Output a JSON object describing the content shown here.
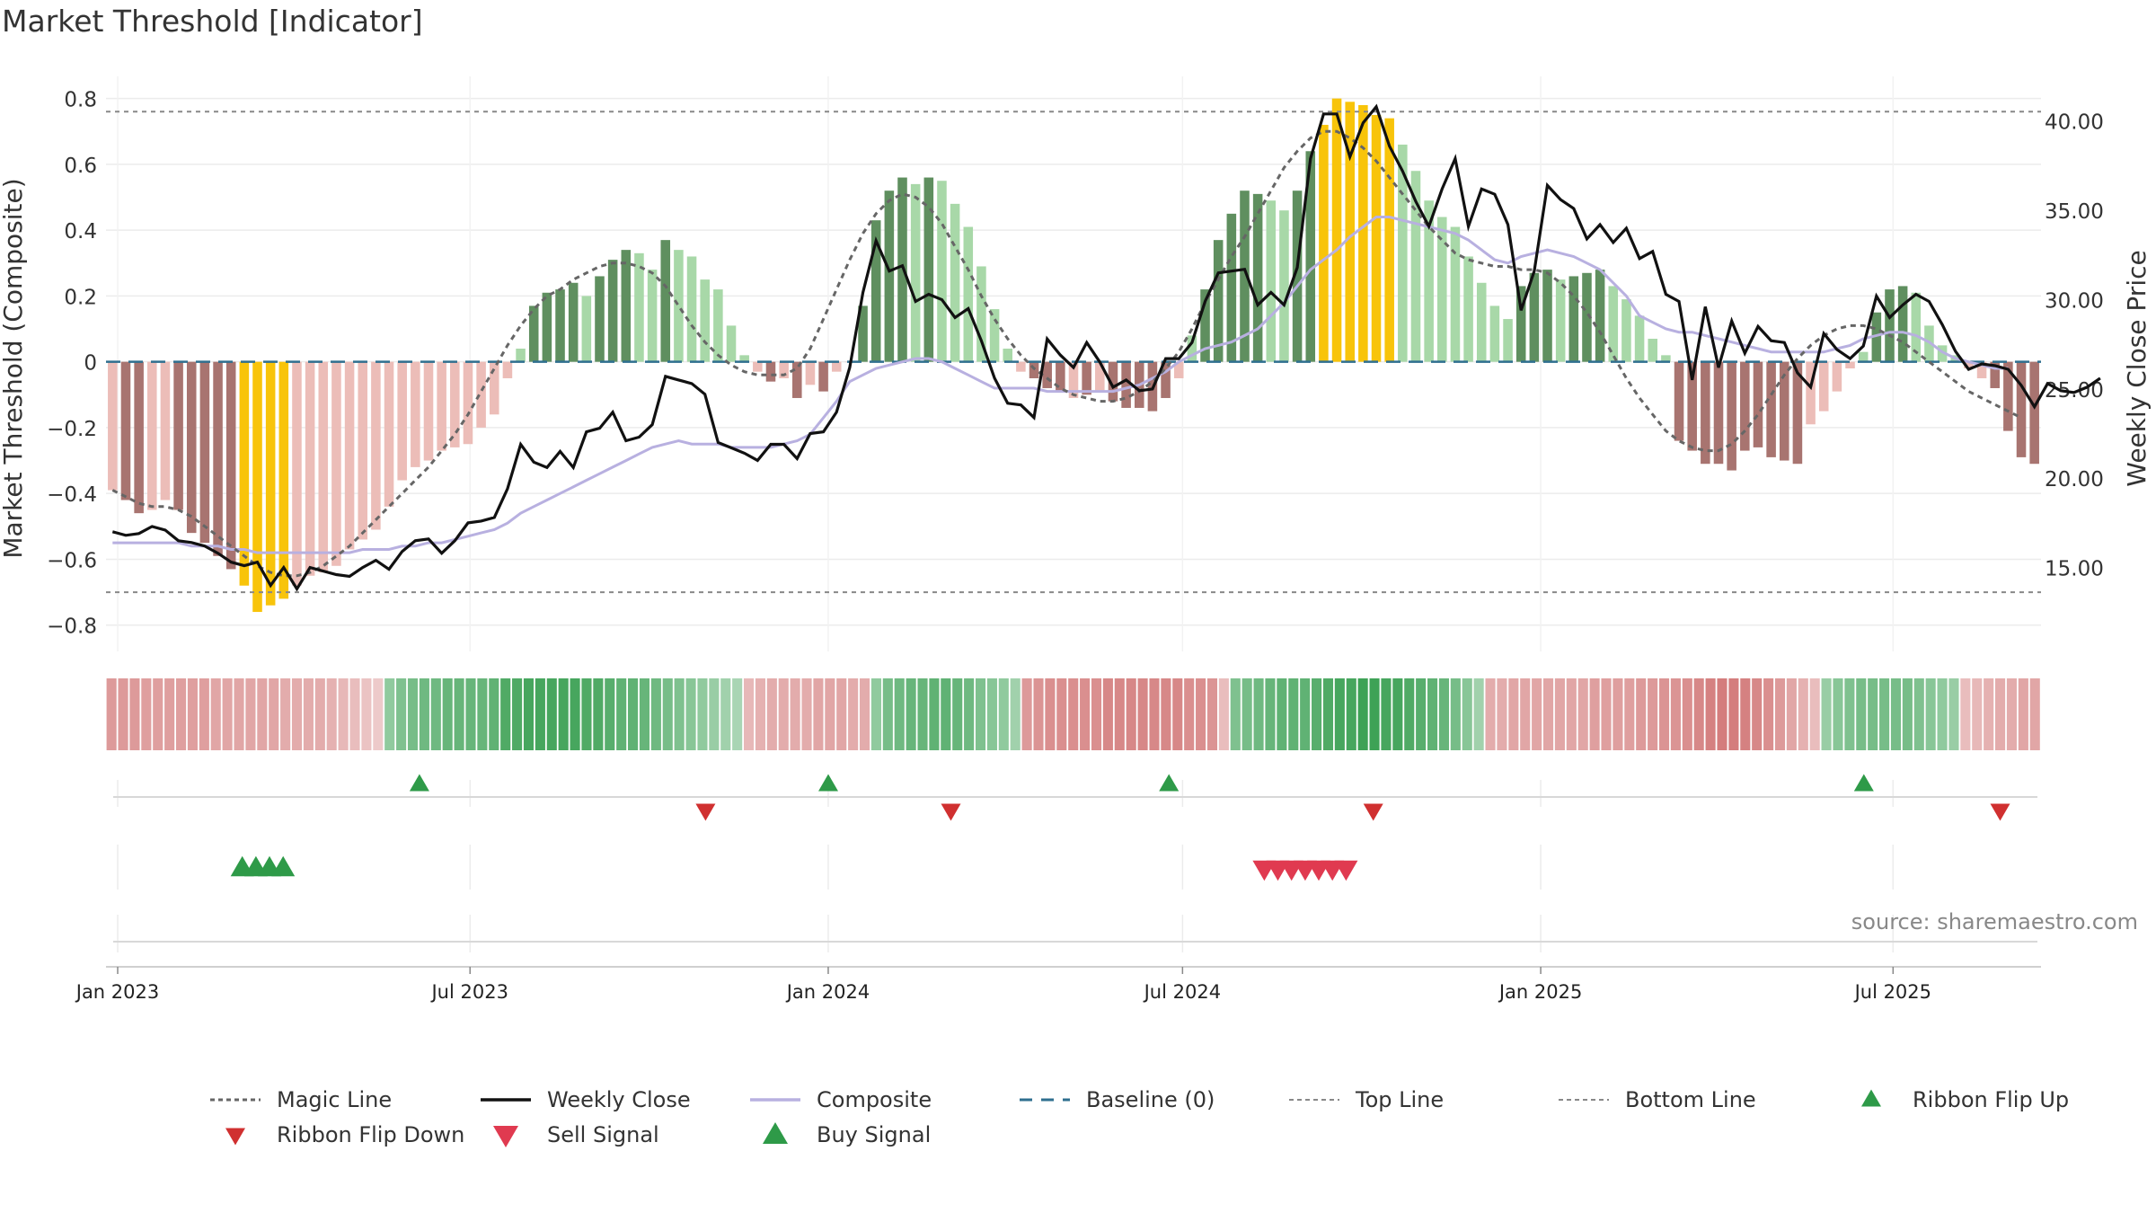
{
  "title": "Market Threshold [Indicator]",
  "source": "source: sharemaestro.com",
  "colors": {
    "dark_green": "#5f8f5f",
    "light_green": "#a8d8a8",
    "dark_red": "#a87470",
    "light_red": "#ecbdb8",
    "yellow": "#f8c40a",
    "close": "#111111",
    "composite": "#b8b0e0",
    "magic": "#666666",
    "baseline": "#2f6f8f",
    "ribbon_up": "#2e9a48",
    "ribbon_down": "#d03030",
    "sell": "#e03a50",
    "buy": "#2e9a48"
  },
  "chart_data": {
    "type": "bar",
    "title": "Market Threshold [Indicator]",
    "ylabel": "Market Threshold (Composite)",
    "y2label": "Weekly Close Price",
    "ylim": [
      -0.88,
      0.84
    ],
    "y2lim": [
      10.3,
      42.0
    ],
    "yticks": [
      -0.8,
      -0.6,
      -0.4,
      -0.2,
      0,
      0.2,
      0.4,
      0.6,
      0.8
    ],
    "ytick_labels": [
      "−0.8",
      "−0.6",
      "−0.4",
      "−0.2",
      "0",
      "0.2",
      "0.4",
      "0.6",
      "0.8"
    ],
    "y2ticks": [
      15,
      20,
      25,
      30,
      35,
      40
    ],
    "y2tick_labels": [
      "15.00",
      "20.00",
      "25.00",
      "30.00",
      "35.00",
      "40.00"
    ],
    "x_start": "2022-12-26",
    "x_end": "2025-09-15",
    "date_ticks": [
      {
        "date": "2023-01-01",
        "label": "Jan 2023"
      },
      {
        "date": "2023-07-01",
        "label": "Jul 2023"
      },
      {
        "date": "2024-01-01",
        "label": "Jan 2024"
      },
      {
        "date": "2024-07-01",
        "label": "Jul 2024"
      },
      {
        "date": "2025-01-01",
        "label": "Jan 2025"
      },
      {
        "date": "2025-07-01",
        "label": "Jul 2025"
      }
    ],
    "top_line": 0.76,
    "bottom_line": -0.7,
    "legend_position": "bottom",
    "grid": true,
    "bars": [
      -0.39,
      -0.42,
      -0.46,
      -0.45,
      -0.42,
      -0.45,
      -0.52,
      -0.55,
      -0.59,
      -0.63,
      -0.68,
      -0.76,
      -0.74,
      -0.72,
      -0.68,
      -0.65,
      -0.64,
      -0.62,
      -0.57,
      -0.54,
      -0.51,
      -0.44,
      -0.36,
      -0.32,
      -0.3,
      -0.27,
      -0.26,
      -0.25,
      -0.2,
      -0.16,
      -0.05,
      0.04,
      0.17,
      0.21,
      0.22,
      0.24,
      0.2,
      0.26,
      0.31,
      0.34,
      0.33,
      0.28,
      0.37,
      0.34,
      0.32,
      0.25,
      0.22,
      0.11,
      0.02,
      -0.03,
      -0.06,
      -0.05,
      -0.11,
      -0.07,
      -0.09,
      -0.03,
      0.0,
      0.17,
      0.43,
      0.52,
      0.56,
      0.54,
      0.56,
      0.55,
      0.48,
      0.41,
      0.29,
      0.16,
      0.04,
      -0.03,
      -0.05,
      -0.08,
      -0.09,
      -0.11,
      -0.1,
      -0.09,
      -0.12,
      -0.14,
      -0.14,
      -0.15,
      -0.11,
      -0.05,
      0.08,
      0.22,
      0.37,
      0.45,
      0.52,
      0.51,
      0.49,
      0.46,
      0.52,
      0.64,
      0.72,
      0.8,
      0.79,
      0.78,
      0.75,
      0.74,
      0.66,
      0.58,
      0.49,
      0.44,
      0.41,
      0.32,
      0.24,
      0.17,
      0.13,
      0.23,
      0.27,
      0.28,
      0.25,
      0.26,
      0.27,
      0.28,
      0.23,
      0.19,
      0.14,
      0.07,
      0.02,
      -0.24,
      -0.27,
      -0.31,
      -0.31,
      -0.33,
      -0.27,
      -0.26,
      -0.29,
      -0.3,
      -0.31,
      -0.19,
      -0.15,
      -0.09,
      -0.02,
      0.03,
      0.15,
      0.22,
      0.23,
      0.21,
      0.11,
      0.05,
      0.02,
      -0.02,
      -0.05,
      -0.08,
      -0.21,
      -0.29,
      -0.31
    ],
    "bar_colors": [
      "light_red",
      "dark_red",
      "dark_red",
      "light_red",
      "light_red",
      "dark_red",
      "dark_red",
      "dark_red",
      "dark_red",
      "dark_red",
      "yellow",
      "yellow",
      "yellow",
      "yellow",
      "light_red",
      "light_red",
      "light_red",
      "light_red",
      "light_red",
      "light_red",
      "light_red",
      "light_red",
      "light_red",
      "light_red",
      "light_red",
      "light_red",
      "light_red",
      "light_red",
      "light_red",
      "light_red",
      "light_red",
      "light_green",
      "dark_green",
      "dark_green",
      "dark_green",
      "dark_green",
      "light_green",
      "dark_green",
      "dark_green",
      "dark_green",
      "light_green",
      "light_green",
      "dark_green",
      "light_green",
      "light_green",
      "light_green",
      "light_green",
      "light_green",
      "light_green",
      "light_red",
      "dark_red",
      "light_red",
      "dark_red",
      "light_red",
      "dark_red",
      "light_red",
      "light_red",
      "dark_green",
      "dark_green",
      "dark_green",
      "dark_green",
      "light_green",
      "dark_green",
      "light_green",
      "light_green",
      "light_green",
      "light_green",
      "light_green",
      "light_green",
      "light_red",
      "dark_red",
      "dark_red",
      "dark_red",
      "light_red",
      "dark_red",
      "light_red",
      "dark_red",
      "dark_red",
      "dark_red",
      "dark_red",
      "dark_red",
      "light_red",
      "light_green",
      "dark_green",
      "dark_green",
      "dark_green",
      "dark_green",
      "dark_green",
      "light_green",
      "light_green",
      "dark_green",
      "dark_green",
      "yellow",
      "yellow",
      "yellow",
      "yellow",
      "yellow",
      "yellow",
      "light_green",
      "light_green",
      "light_green",
      "light_green",
      "light_green",
      "light_green",
      "light_green",
      "light_green",
      "light_green",
      "dark_green",
      "dark_green",
      "dark_green",
      "light_green",
      "dark_green",
      "dark_green",
      "dark_green",
      "light_green",
      "light_green",
      "light_green",
      "light_green",
      "light_green",
      "dark_red",
      "dark_red",
      "dark_red",
      "dark_red",
      "dark_red",
      "dark_red",
      "dark_red",
      "dark_red",
      "dark_red",
      "dark_red",
      "light_red",
      "light_red",
      "light_red",
      "light_red",
      "light_green",
      "dark_green",
      "dark_green",
      "dark_green",
      "light_green",
      "light_green",
      "light_green",
      "light_green",
      "light_red",
      "light_red",
      "dark_red",
      "dark_red",
      "dark_red",
      "dark_red"
    ],
    "magic_line": [
      -0.39,
      -0.41,
      -0.43,
      -0.44,
      -0.44,
      -0.45,
      -0.47,
      -0.5,
      -0.53,
      -0.56,
      -0.59,
      -0.62,
      -0.64,
      -0.65,
      -0.65,
      -0.64,
      -0.62,
      -0.59,
      -0.56,
      -0.52,
      -0.48,
      -0.44,
      -0.4,
      -0.36,
      -0.32,
      -0.27,
      -0.22,
      -0.16,
      -0.09,
      -0.02,
      0.05,
      0.11,
      0.16,
      0.2,
      0.22,
      0.25,
      0.27,
      0.29,
      0.3,
      0.3,
      0.29,
      0.27,
      0.23,
      0.17,
      0.11,
      0.06,
      0.02,
      -0.01,
      -0.03,
      -0.04,
      -0.04,
      -0.04,
      -0.02,
      0.04,
      0.13,
      0.22,
      0.31,
      0.39,
      0.45,
      0.49,
      0.51,
      0.5,
      0.47,
      0.42,
      0.35,
      0.28,
      0.2,
      0.13,
      0.07,
      0.02,
      -0.02,
      -0.05,
      -0.08,
      -0.1,
      -0.11,
      -0.12,
      -0.12,
      -0.11,
      -0.09,
      -0.06,
      -0.02,
      0.03,
      0.1,
      0.18,
      0.25,
      0.32,
      0.38,
      0.45,
      0.52,
      0.59,
      0.64,
      0.68,
      0.7,
      0.7,
      0.68,
      0.65,
      0.61,
      0.56,
      0.51,
      0.46,
      0.41,
      0.37,
      0.33,
      0.31,
      0.3,
      0.29,
      0.29,
      0.28,
      0.28,
      0.27,
      0.24,
      0.2,
      0.15,
      0.09,
      0.02,
      -0.05,
      -0.11,
      -0.16,
      -0.21,
      -0.24,
      -0.26,
      -0.27,
      -0.27,
      -0.25,
      -0.21,
      -0.16,
      -0.1,
      -0.04,
      0.01,
      0.05,
      0.08,
      0.1,
      0.11,
      0.11,
      0.1,
      0.08,
      0.06,
      0.03,
      0.0,
      -0.03,
      -0.06,
      -0.09,
      -0.11,
      -0.13,
      -0.15,
      -0.17
    ],
    "composite": [
      -0.55,
      -0.55,
      -0.55,
      -0.55,
      -0.55,
      -0.55,
      -0.56,
      -0.56,
      -0.56,
      -0.57,
      -0.57,
      -0.58,
      -0.58,
      -0.58,
      -0.58,
      -0.58,
      -0.58,
      -0.58,
      -0.58,
      -0.57,
      -0.57,
      -0.57,
      -0.56,
      -0.56,
      -0.55,
      -0.55,
      -0.54,
      -0.53,
      -0.52,
      -0.51,
      -0.49,
      -0.46,
      -0.44,
      -0.42,
      -0.4,
      -0.38,
      -0.36,
      -0.34,
      -0.32,
      -0.3,
      -0.28,
      -0.26,
      -0.25,
      -0.24,
      -0.25,
      -0.25,
      -0.25,
      -0.26,
      -0.26,
      -0.26,
      -0.26,
      -0.25,
      -0.24,
      -0.22,
      -0.17,
      -0.12,
      -0.06,
      -0.04,
      -0.02,
      -0.01,
      0.0,
      0.01,
      0.01,
      0.0,
      -0.02,
      -0.04,
      -0.06,
      -0.08,
      -0.08,
      -0.08,
      -0.08,
      -0.09,
      -0.09,
      -0.09,
      -0.09,
      -0.09,
      -0.09,
      -0.08,
      -0.07,
      -0.05,
      -0.03,
      0.0,
      0.02,
      0.04,
      0.05,
      0.06,
      0.08,
      0.1,
      0.14,
      0.18,
      0.23,
      0.28,
      0.31,
      0.34,
      0.38,
      0.41,
      0.44,
      0.44,
      0.43,
      0.42,
      0.41,
      0.4,
      0.39,
      0.37,
      0.34,
      0.31,
      0.3,
      0.32,
      0.33,
      0.34,
      0.33,
      0.32,
      0.3,
      0.28,
      0.24,
      0.2,
      0.14,
      0.12,
      0.1,
      0.09,
      0.09,
      0.08,
      0.07,
      0.06,
      0.05,
      0.04,
      0.03,
      0.03,
      0.03,
      0.03,
      0.03,
      0.04,
      0.05,
      0.07,
      0.08,
      0.09,
      0.09,
      0.08,
      0.06,
      0.03,
      0.01,
      0.0,
      -0.01,
      -0.02,
      -0.02
    ],
    "close": [
      17.0,
      16.8,
      16.9,
      17.3,
      17.1,
      16.5,
      16.4,
      16.2,
      15.8,
      15.3,
      15.1,
      15.3,
      14.0,
      15.0,
      13.8,
      15.0,
      14.8,
      14.6,
      14.5,
      15.0,
      15.4,
      14.9,
      15.9,
      16.5,
      16.6,
      15.8,
      16.5,
      17.5,
      17.6,
      17.8,
      19.4,
      21.9,
      20.9,
      20.6,
      21.5,
      20.6,
      22.6,
      22.8,
      23.7,
      22.1,
      22.3,
      23.0,
      25.7,
      25.5,
      25.3,
      24.7,
      22.0,
      21.7,
      21.4,
      21.0,
      21.9,
      21.9,
      21.1,
      22.5,
      22.6,
      23.7,
      26.2,
      30.4,
      33.3,
      31.6,
      31.9,
      29.9,
      30.3,
      30.0,
      29.0,
      29.5,
      27.7,
      25.6,
      24.2,
      24.1,
      23.4,
      27.8,
      26.9,
      26.2,
      27.6,
      26.5,
      25.1,
      25.5,
      24.9,
      25.0,
      26.7,
      26.7,
      27.6,
      29.9,
      31.5,
      31.6,
      31.7,
      29.7,
      30.4,
      29.7,
      31.8,
      37.9,
      40.4,
      40.4,
      38.0,
      39.9,
      40.8,
      38.6,
      37.2,
      35.5,
      34.1,
      36.2,
      37.9,
      34.1,
      36.2,
      35.9,
      34.2,
      29.4,
      31.6,
      36.4,
      35.6,
      35.1,
      33.4,
      34.2,
      33.2,
      34.0,
      32.3,
      32.7,
      30.3,
      29.9,
      25.5,
      29.6,
      26.2,
      28.8,
      27.0,
      28.5,
      27.7,
      27.6,
      25.9,
      25.1,
      28.1,
      27.2,
      26.7,
      27.4,
      30.2,
      29.0,
      29.7,
      30.3,
      29.9,
      28.6,
      27.1,
      26.1,
      26.4,
      26.3,
      26.1,
      25.2,
      24.0,
      25.3,
      24.9,
      24.8,
      25.1,
      25.6
    ],
    "ribbon": [
      -0.6,
      -0.6,
      -0.6,
      -0.55,
      -0.55,
      -0.55,
      -0.55,
      -0.55,
      -0.55,
      -0.5,
      -0.5,
      -0.5,
      -0.5,
      -0.5,
      -0.5,
      -0.45,
      -0.45,
      -0.45,
      -0.45,
      -0.4,
      -0.35,
      -0.3,
      -0.25,
      -0.2,
      0.45,
      0.55,
      0.6,
      0.65,
      0.65,
      0.7,
      0.7,
      0.7,
      0.7,
      0.75,
      0.85,
      0.85,
      0.9,
      0.9,
      0.9,
      0.9,
      0.9,
      0.85,
      0.85,
      0.8,
      0.75,
      0.75,
      0.7,
      0.65,
      0.6,
      0.55,
      0.5,
      0.45,
      0.4,
      0.35,
      0.3,
      -0.35,
      -0.4,
      -0.45,
      -0.45,
      -0.45,
      -0.45,
      -0.5,
      -0.5,
      -0.5,
      -0.45,
      -0.45,
      0.45,
      0.6,
      0.65,
      0.7,
      0.7,
      0.75,
      0.75,
      0.7,
      0.65,
      0.55,
      0.5,
      0.45,
      0.35,
      -0.6,
      -0.65,
      -0.7,
      -0.7,
      -0.7,
      -0.7,
      -0.7,
      -0.75,
      -0.75,
      -0.75,
      -0.75,
      -0.75,
      -0.75,
      -0.75,
      -0.7,
      -0.7,
      -0.65,
      -0.3,
      0.55,
      0.6,
      0.65,
      0.7,
      0.75,
      0.75,
      0.75,
      0.8,
      0.85,
      0.9,
      0.9,
      0.95,
      0.95,
      0.9,
      0.9,
      0.85,
      0.8,
      0.75,
      0.7,
      0.6,
      0.5,
      0.35,
      -0.45,
      -0.45,
      -0.5,
      -0.5,
      -0.5,
      -0.5,
      -0.5,
      -0.5,
      -0.5,
      -0.55,
      -0.55,
      -0.55,
      -0.55,
      -0.6,
      -0.6,
      -0.65,
      -0.65,
      -0.7,
      -0.75,
      -0.8,
      -0.85,
      -0.85,
      -0.8,
      -0.75,
      -0.7,
      -0.6,
      -0.5,
      -0.4,
      -0.3,
      0.4,
      0.5,
      0.55,
      0.6,
      0.6,
      0.6,
      0.6,
      0.6,
      0.55,
      0.5,
      0.45,
      0.4,
      -0.3,
      -0.35,
      -0.4,
      -0.45,
      -0.45,
      -0.5,
      -0.5
    ],
    "ribbon_flip_up": [
      "2023-06-05",
      "2024-01-01",
      "2024-06-24",
      "2025-06-16"
    ],
    "ribbon_flip_down": [
      "2023-10-30",
      "2024-03-04",
      "2024-10-07",
      "2025-08-25"
    ],
    "buy_signals": [
      "2023-03-06",
      "2023-03-13",
      "2023-03-20",
      "2023-03-27"
    ],
    "sell_signals": [
      "2024-08-12",
      "2024-08-19",
      "2024-08-26",
      "2024-09-02",
      "2024-09-09",
      "2024-09-16",
      "2024-09-23"
    ],
    "legend": [
      {
        "key": "magic",
        "label": "Magic Line"
      },
      {
        "key": "close",
        "label": "Weekly Close"
      },
      {
        "key": "composite",
        "label": "Composite"
      },
      {
        "key": "baseline",
        "label": "Baseline (0)"
      },
      {
        "key": "top",
        "label": "Top Line"
      },
      {
        "key": "bottom",
        "label": "Bottom Line"
      },
      {
        "key": "flip_up",
        "label": "Ribbon Flip Up"
      },
      {
        "key": "flip_down",
        "label": "Ribbon Flip Down"
      },
      {
        "key": "sell",
        "label": "Sell Signal"
      },
      {
        "key": "buy",
        "label": "Buy Signal"
      }
    ]
  }
}
